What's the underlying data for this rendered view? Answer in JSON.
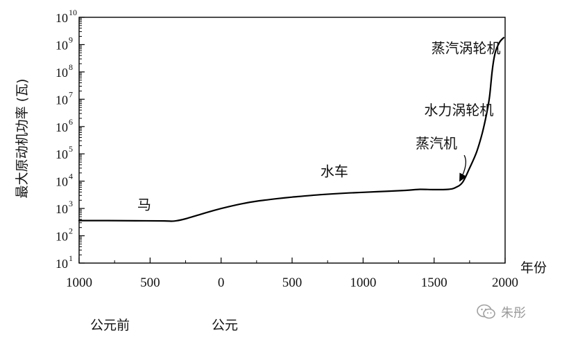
{
  "chart_data": {
    "type": "line",
    "ylabel": "最大原动机功率 (瓦)",
    "xlabel": "年份",
    "y_scale": "log",
    "ylim": [
      10,
      10000000000
    ],
    "xlim": [
      -1000,
      2000
    ],
    "x_ticks": [
      {
        "value": -1000,
        "label": "1000"
      },
      {
        "value": -500,
        "label": "500"
      },
      {
        "value": 0,
        "label": "0"
      },
      {
        "value": 500,
        "label": "500"
      },
      {
        "value": 1000,
        "label": "1000"
      },
      {
        "value": 1500,
        "label": "1500"
      },
      {
        "value": 2000,
        "label": "2000"
      }
    ],
    "y_ticks": [
      {
        "value": 10,
        "base": "10",
        "exp": "1"
      },
      {
        "value": 100,
        "base": "10",
        "exp": "2"
      },
      {
        "value": 1000,
        "base": "10",
        "exp": "3"
      },
      {
        "value": 10000,
        "base": "10",
        "exp": "4"
      },
      {
        "value": 100000,
        "base": "10",
        "exp": "5"
      },
      {
        "value": 1000000,
        "base": "10",
        "exp": "6"
      },
      {
        "value": 10000000,
        "base": "10",
        "exp": "7"
      },
      {
        "value": 100000000,
        "base": "10",
        "exp": "8"
      },
      {
        "value": 1000000000,
        "base": "10",
        "exp": "9"
      },
      {
        "value": 10000000000,
        "base": "10",
        "exp": "10"
      }
    ],
    "series": [
      {
        "color": "#000000",
        "points": [
          [
            -1000,
            360
          ],
          [
            -800,
            360
          ],
          [
            -600,
            355
          ],
          [
            -400,
            350
          ],
          [
            -330,
            345
          ],
          [
            -250,
            420
          ],
          [
            -150,
            600
          ],
          [
            -50,
            850
          ],
          [
            50,
            1150
          ],
          [
            150,
            1500
          ],
          [
            250,
            1850
          ],
          [
            400,
            2300
          ],
          [
            500,
            2600
          ],
          [
            700,
            3200
          ],
          [
            900,
            3700
          ],
          [
            1100,
            4100
          ],
          [
            1300,
            4600
          ],
          [
            1400,
            5000
          ],
          [
            1500,
            4900
          ],
          [
            1600,
            5000
          ],
          [
            1650,
            5800
          ],
          [
            1700,
            9000
          ],
          [
            1750,
            30000
          ],
          [
            1800,
            120000
          ],
          [
            1840,
            600000
          ],
          [
            1870,
            3000000
          ],
          [
            1890,
            12000000
          ],
          [
            1910,
            120000000
          ],
          [
            1930,
            500000000
          ],
          [
            1960,
            1200000000
          ],
          [
            1990,
            1800000000
          ]
        ]
      }
    ],
    "annotations": [
      {
        "text": "马",
        "x": -590,
        "y": 920
      },
      {
        "text": "水车",
        "x": 700,
        "y": 15000
      },
      {
        "text": "蒸汽机",
        "x": 1370,
        "y": 160000,
        "arrow_to": [
          1700,
          8000
        ]
      },
      {
        "text": "水力涡轮机",
        "x": 1430,
        "y": 2700000
      },
      {
        "text": "蒸汽涡轮机",
        "x": 1480,
        "y": 500000000
      }
    ]
  },
  "era_labels": {
    "bc": "公元前",
    "ad": "公元"
  },
  "watermark": {
    "text": "朱彤",
    "icon": "wechat-logo-icon"
  }
}
